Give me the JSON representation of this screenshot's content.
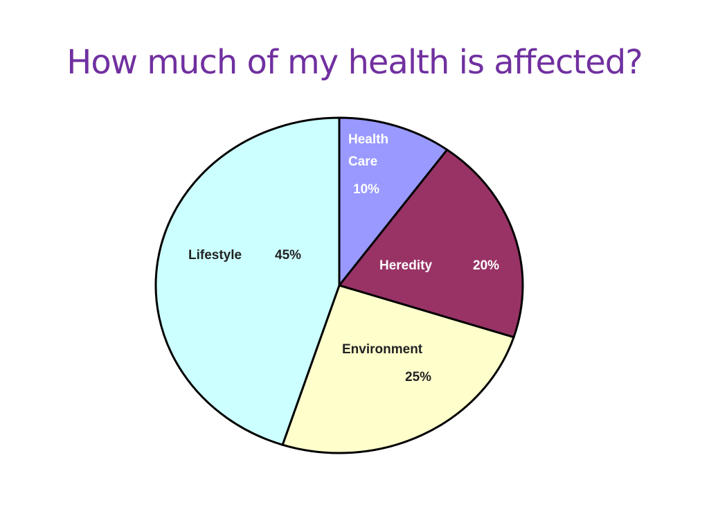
{
  "chart_data": {
    "type": "pie",
    "title": "How much of my health is affected?",
    "categories": [
      "Health Care",
      "Heredity",
      "Environment",
      "Lifestyle"
    ],
    "values": [
      10,
      20,
      25,
      45
    ],
    "value_labels": [
      "10%",
      "20%",
      "25%",
      "45%"
    ],
    "colors": [
      "#9999ff",
      "#993366",
      "#ffffcc",
      "#ccffff"
    ]
  }
}
